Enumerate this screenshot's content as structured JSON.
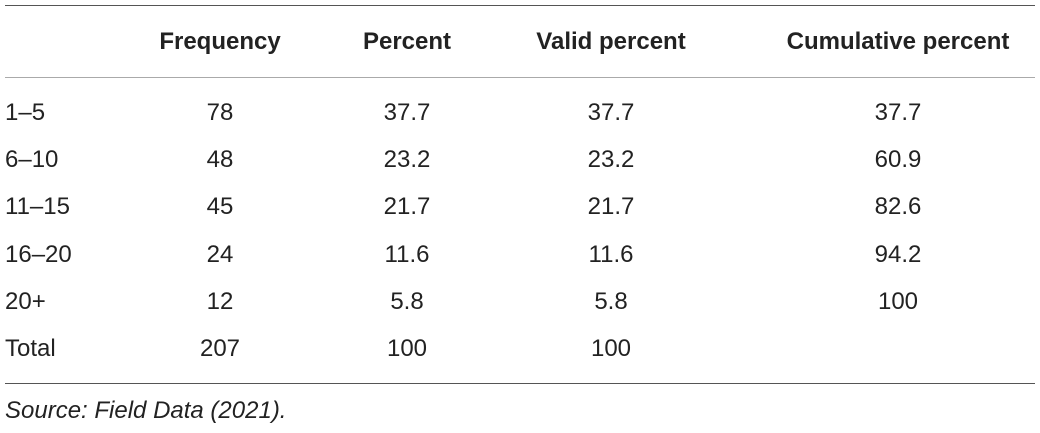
{
  "table": {
    "columns": [
      "Frequency",
      "Percent",
      "Valid percent",
      "Cumulative percent"
    ],
    "rows": [
      [
        "1–5",
        "78",
        "37.7",
        "37.7",
        "37.7"
      ],
      [
        "6–10",
        "48",
        "23.2",
        "23.2",
        "60.9"
      ],
      [
        "11–15",
        "45",
        "21.7",
        "21.7",
        "82.6"
      ],
      [
        "16–20",
        "24",
        "11.6",
        "11.6",
        "94.2"
      ],
      [
        "20+",
        "12",
        "5.8",
        "5.8",
        "100"
      ],
      [
        "Total",
        "207",
        "100",
        "100"
      ]
    ]
  },
  "footer": {
    "source": "Source: Field Data (2021)."
  }
}
